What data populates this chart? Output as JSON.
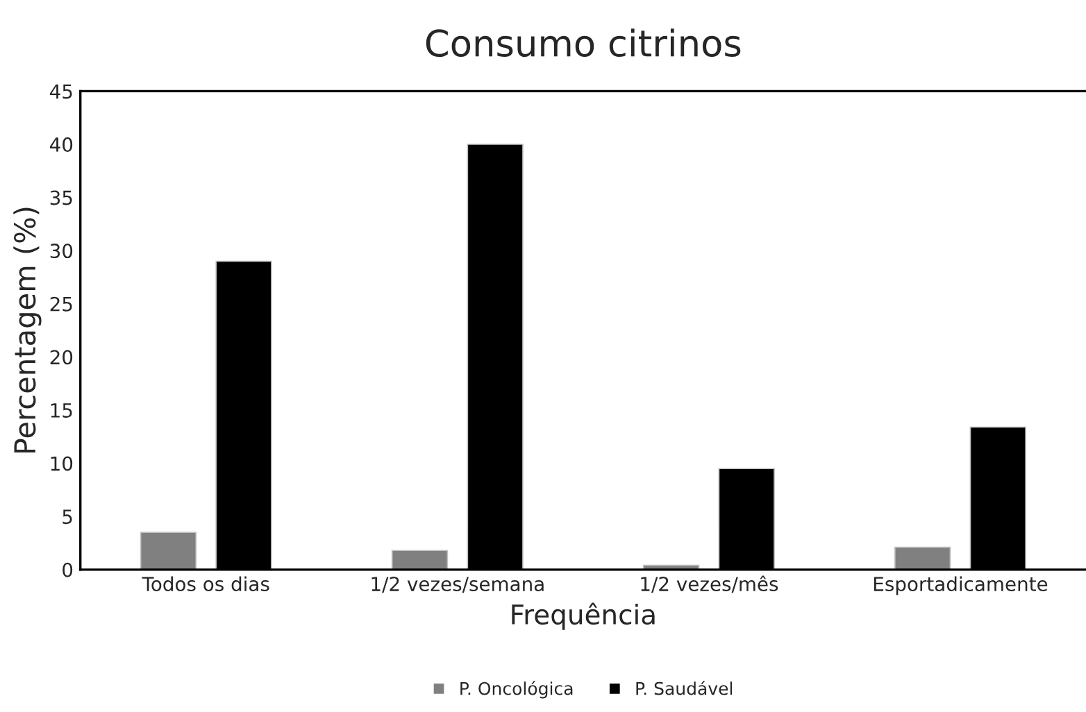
{
  "chart_data": {
    "type": "bar",
    "title": "Consumo citrinos",
    "xlabel": "Frequência",
    "ylabel": "Percentagem (%)",
    "categories": [
      "Todos os dias",
      "1/2 vezes/semana",
      "1/2 vezes/mês",
      "Esportadicamente"
    ],
    "series": [
      {
        "name": "P. Oncológica",
        "color": "#808080",
        "values": [
          3.5,
          1.8,
          0.4,
          2.1
        ]
      },
      {
        "name": "P. Saudável",
        "color": "#000000",
        "values": [
          29,
          40,
          9.5,
          13.4
        ]
      }
    ],
    "ylim": [
      0,
      45
    ],
    "yticks": [
      0,
      5,
      10,
      15,
      20,
      25,
      30,
      35,
      40,
      45
    ],
    "grid": false,
    "legend": "bottom"
  }
}
